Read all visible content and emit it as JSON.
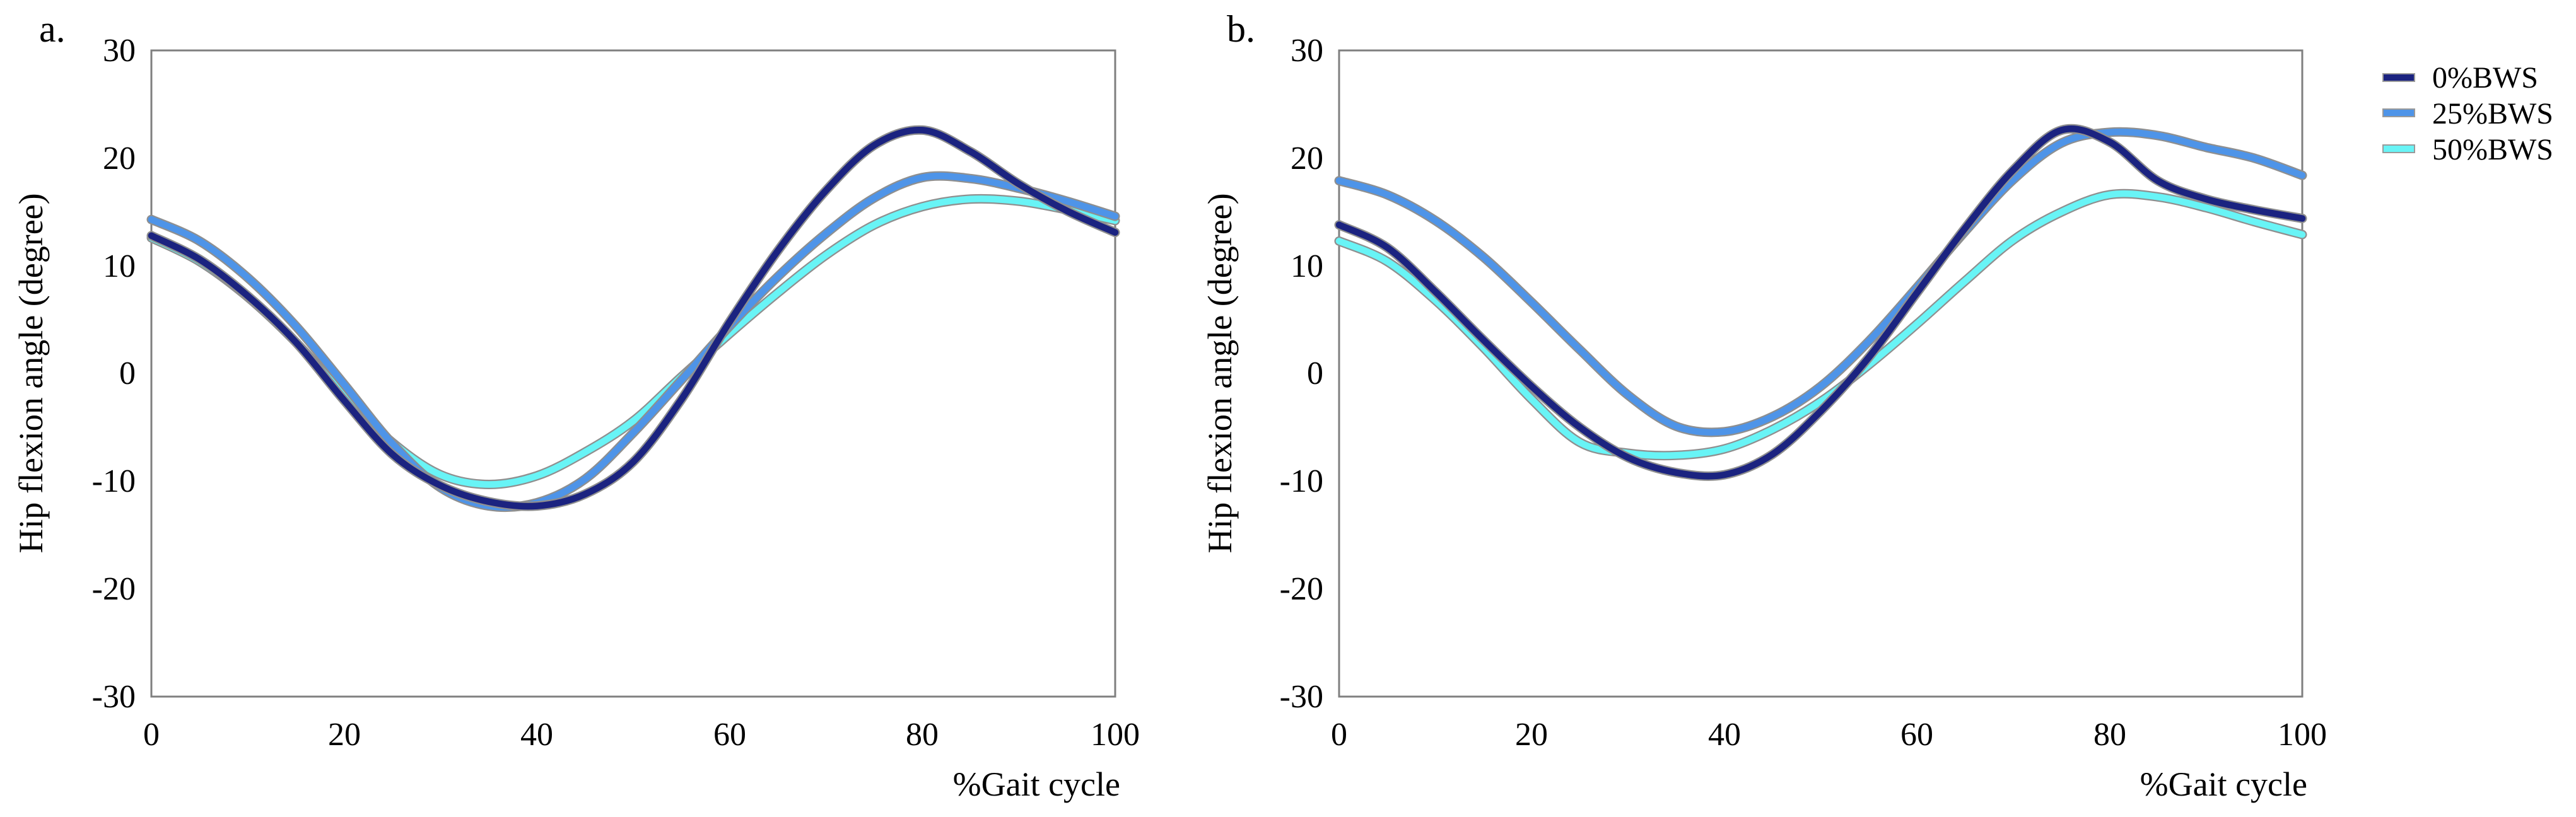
{
  "figure": {
    "description": "Two-panel line figure comparing hip flexion angle across the gait cycle at three body-weight-support levels",
    "background": "#ffffff",
    "plot_border_color": "#7f7f7f",
    "line_outline_color": "#8f8f8f"
  },
  "legend": {
    "position": "right-of-panel-b",
    "items": [
      {
        "label": "0%BWS",
        "color": "#1B2380"
      },
      {
        "label": "25%BWS",
        "color": "#4E94E8"
      },
      {
        "label": "50%BWS",
        "color": "#68F4F6"
      }
    ]
  },
  "chart_data": [
    {
      "type": "line",
      "panel_label": "a.",
      "x_label": "%Gait cycle",
      "y_label": "Hip flexion angle (degree)",
      "xlim": [
        0,
        100
      ],
      "ylim": [
        -30,
        30
      ],
      "x_ticks": [
        0,
        20,
        40,
        60,
        80,
        100
      ],
      "y_ticks": [
        30,
        20,
        10,
        0,
        -10,
        -20,
        -30
      ],
      "grid": false,
      "x": [
        0,
        5,
        10,
        15,
        20,
        25,
        30,
        35,
        40,
        45,
        50,
        55,
        60,
        65,
        70,
        75,
        80,
        85,
        90,
        95,
        100
      ],
      "series": [
        {
          "name": "0%BWS",
          "color": "#1B2380",
          "values": [
            12.8,
            10.6,
            7.2,
            2.9,
            -2.5,
            -7.5,
            -10.4,
            -11.9,
            -12.3,
            -11.2,
            -8.2,
            -2.4,
            4.8,
            11.4,
            17.0,
            21.2,
            22.6,
            20.6,
            17.6,
            15.1,
            13.1
          ]
        },
        {
          "name": "25%BWS",
          "color": "#4E94E8",
          "values": [
            14.3,
            12.3,
            8.9,
            4.4,
            -1.0,
            -6.5,
            -10.6,
            -12.3,
            -12.0,
            -9.8,
            -5.5,
            -0.6,
            4.4,
            9.0,
            13.0,
            16.3,
            18.2,
            18.1,
            17.2,
            16.0,
            14.6
          ]
        },
        {
          "name": "50%BWS",
          "color": "#68F4F6",
          "values": [
            12.6,
            10.4,
            7.1,
            2.9,
            -2.0,
            -6.4,
            -9.4,
            -10.3,
            -9.5,
            -7.3,
            -4.4,
            -0.3,
            3.7,
            7.5,
            11.0,
            13.8,
            15.5,
            16.2,
            16.0,
            15.2,
            14.2
          ]
        }
      ]
    },
    {
      "type": "line",
      "panel_label": "b.",
      "x_label": "%Gait cycle",
      "y_label": "Hip flexion angle (degree)",
      "xlim": [
        0,
        100
      ],
      "ylim": [
        -30,
        30
      ],
      "x_ticks": [
        0,
        20,
        40,
        60,
        80,
        100
      ],
      "y_ticks": [
        30,
        20,
        10,
        0,
        -10,
        -20,
        -30
      ],
      "grid": false,
      "x": [
        0,
        5,
        10,
        15,
        20,
        25,
        30,
        35,
        40,
        45,
        50,
        55,
        60,
        65,
        70,
        75,
        80,
        85,
        90,
        95,
        100
      ],
      "series": [
        {
          "name": "0%BWS",
          "color": "#1B2380",
          "values": [
            13.8,
            11.7,
            7.6,
            3.1,
            -1.2,
            -5.0,
            -7.8,
            -9.2,
            -9.4,
            -7.5,
            -3.5,
            1.5,
            7.5,
            13.5,
            18.9,
            22.6,
            21.5,
            17.9,
            16.2,
            15.2,
            14.4
          ]
        },
        {
          "name": "25%BWS",
          "color": "#4E94E8",
          "values": [
            17.9,
            16.6,
            14.2,
            10.8,
            6.6,
            2.2,
            -2.0,
            -4.9,
            -5.4,
            -4.0,
            -1.2,
            3.0,
            8.0,
            13.2,
            18.0,
            21.4,
            22.4,
            22.1,
            21.0,
            20.0,
            18.4
          ]
        },
        {
          "name": "50%BWS",
          "color": "#68F4F6",
          "values": [
            12.3,
            10.4,
            6.8,
            2.4,
            -2.4,
            -6.4,
            -7.4,
            -7.6,
            -7.0,
            -5.2,
            -2.6,
            0.8,
            4.6,
            8.6,
            12.4,
            15.0,
            16.6,
            16.4,
            15.4,
            14.1,
            12.9
          ]
        }
      ]
    }
  ]
}
